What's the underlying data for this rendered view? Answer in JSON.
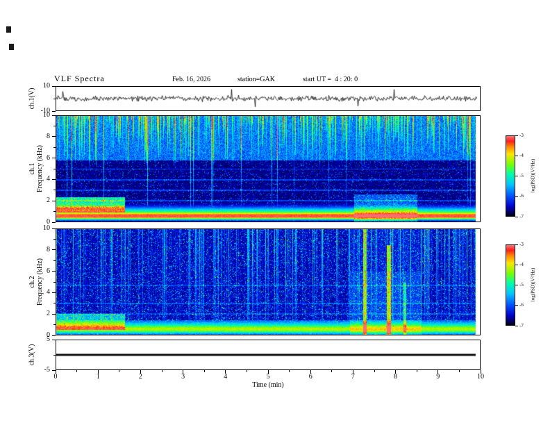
{
  "header": {
    "title": "VLF Spectra",
    "date": "Feb. 16, 2026",
    "station": "station=GAK",
    "start_ut": "start UT =  4 : 20: 0"
  },
  "xaxis": {
    "label": "Time (min)",
    "range": [
      0,
      10
    ],
    "ticks": [
      "0",
      "1",
      "2",
      "3",
      "4",
      "5",
      "6",
      "7",
      "8",
      "9",
      "10"
    ]
  },
  "panels": {
    "ch1_waveform": {
      "ylabel": "ch.1(V)",
      "yrange": [
        -10,
        10
      ],
      "yticks": [
        "10",
        "-10"
      ]
    },
    "ch1_spectrogram": {
      "channel": "ch.1",
      "ylabel": "Frequency (kHz)",
      "yrange": [
        0,
        10
      ],
      "yticks": [
        "0",
        "2",
        "4",
        "6",
        "8",
        "10"
      ]
    },
    "ch2_spectrogram": {
      "channel": "ch.2",
      "ylabel": "Frequency (kHz)",
      "yrange": [
        0,
        10
      ],
      "yticks": [
        "0",
        "2",
        "4",
        "6",
        "8",
        "10"
      ]
    },
    "ch3_waveform": {
      "ylabel": "ch.3(V)",
      "yrange": [
        -5,
        5
      ],
      "yticks": [
        "5",
        "-5"
      ]
    }
  },
  "colorbar": {
    "label": "log(PSD)(V²/Hz)",
    "range": [
      -7,
      -3
    ],
    "ticks": [
      "-3",
      "-4",
      "-5",
      "-6",
      "-7"
    ]
  },
  "chart_data": [
    {
      "type": "line",
      "panel": "ch.1(V)",
      "xlabel": "Time (min)",
      "xlim": [
        0,
        10
      ],
      "ylim": [
        -10,
        10
      ],
      "yticks": [
        10,
        -10
      ],
      "series": [
        {
          "name": "ch.1 voltage",
          "description": "broadband noise centered on 0 V with ~±2 V envelope and sporadic impulsive spikes reaching about ±8 V across the full 0-10 min interval"
        }
      ]
    },
    {
      "type": "heatmap",
      "panel": "ch.1 spectrogram",
      "xlabel": "Time (min)",
      "ylabel": "Frequency (kHz)",
      "xlim": [
        0,
        10
      ],
      "ylim": [
        0,
        10
      ],
      "zlabel": "log(PSD)(V²/Hz)",
      "zlim": [
        -7,
        -3
      ],
      "features": [
        "intense red/orange band below ~1 kHz (PSD ≈ -3.2 to -4) persisting for the full 10 min",
        "dense vertical sferic streaks (green/yellow, PSD ≈ -4) from 10 kHz down to ~6 kHz at all times",
        "very dark region (PSD ≈ -6.5 to -7) between ~2 and 6 kHz with sparse blue vertical lines",
        "cyan/green enhancement 1-2.3 kHz from 0 to ~1.6 min",
        "low-frequency enhancement near 7.2-8.5 min",
        "faint horizontal interference lines near 2, 3, 4 and 5 kHz"
      ]
    },
    {
      "type": "heatmap",
      "panel": "ch.2 spectrogram",
      "xlabel": "Time (min)",
      "ylabel": "Frequency (kHz)",
      "xlim": [
        0,
        10
      ],
      "ylim": [
        0,
        10
      ],
      "zlabel": "log(PSD)(V²/Hz)",
      "zlim": [
        -7,
        -3
      ],
      "features": [
        "mostly dark blue background (PSD ≈ -6.5 to -7) with blue/cyan speckle at all frequencies",
        "green/yellow band below ~1 kHz (PSD ≈ -4.5)",
        "cyan enhancement below ~2 kHz from 0 to ~1.6 min",
        "bright vertical columns near 7.3 and 7.9 min extending toward high frequency",
        "faint horizontal interference lines near 2 and 3 kHz"
      ]
    },
    {
      "type": "line",
      "panel": "ch.3(V)",
      "xlabel": "Time (min)",
      "xlim": [
        0,
        10
      ],
      "ylim": [
        -5,
        5
      ],
      "yticks": [
        5,
        -5
      ],
      "series": [
        {
          "name": "ch.3 voltage",
          "description": "constant 0 V flat line for the full 0-10 min interval"
        }
      ]
    }
  ]
}
